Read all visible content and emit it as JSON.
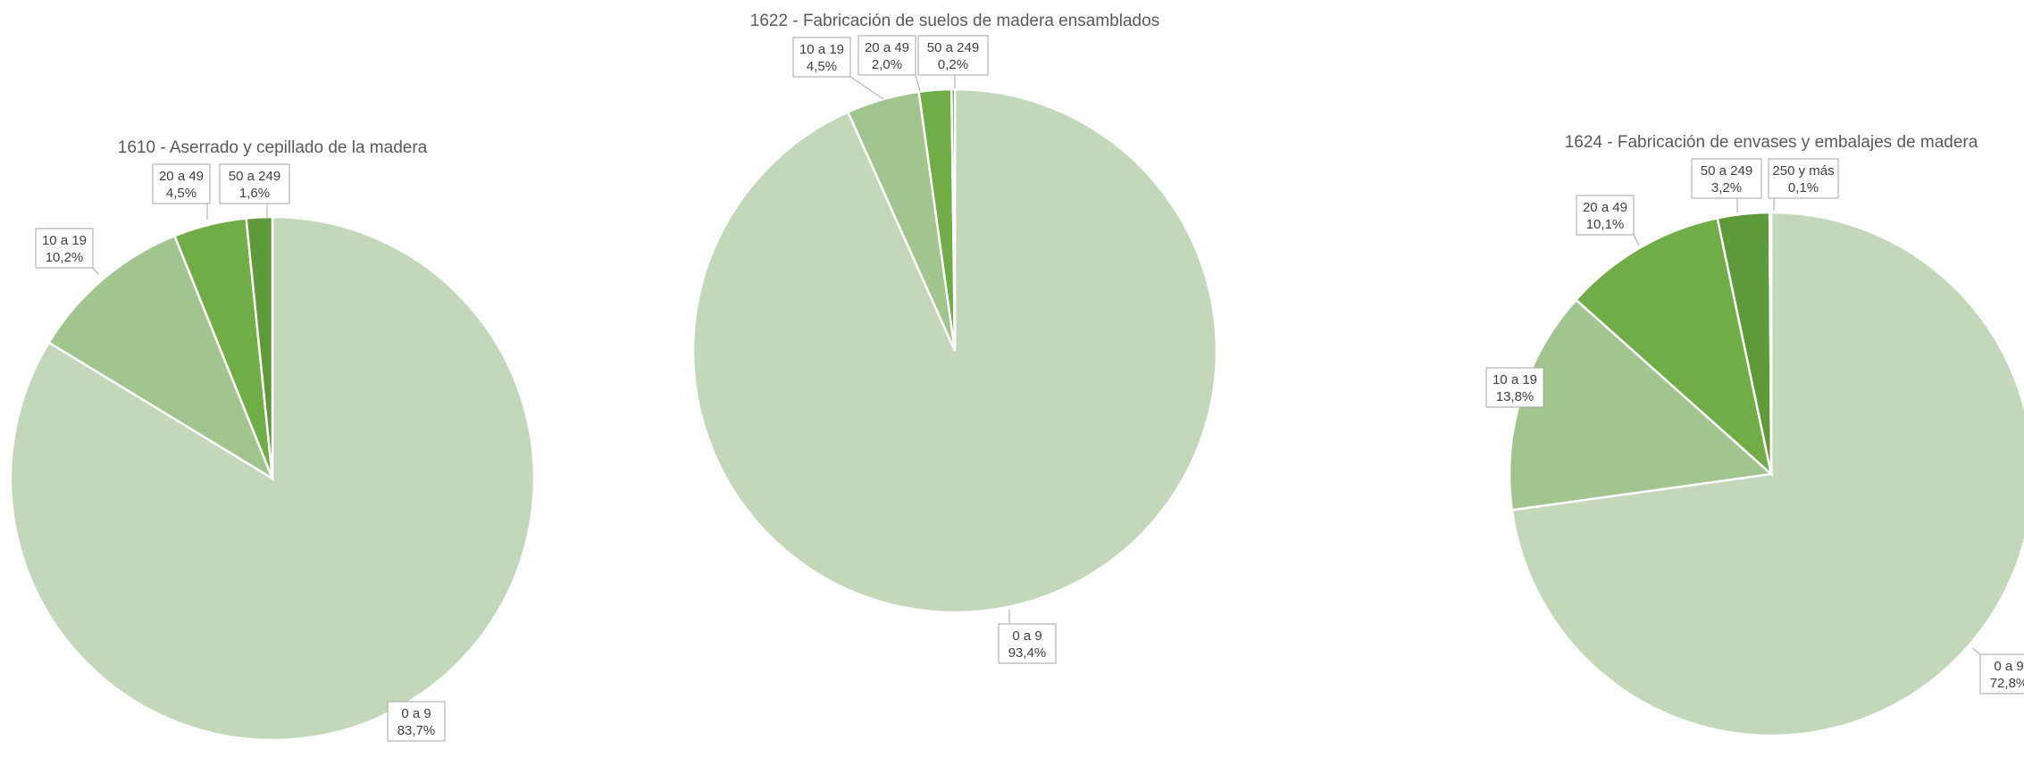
{
  "chart_data": [
    {
      "type": "pie",
      "title": "1610 - Aserrado y cepillado de la madera",
      "slices": [
        {
          "category": "0 a 9",
          "value": 83.7,
          "label": "83,7%",
          "color": "#c3d8ba"
        },
        {
          "category": "10 a 19",
          "value": 10.2,
          "label": "10,2%",
          "color": "#a2c48f"
        },
        {
          "category": "20 a 49",
          "value": 4.5,
          "label": "4,5%",
          "color": "#70ad47"
        },
        {
          "category": "50 a 249",
          "value": 1.6,
          "label": "1,6%",
          "color": "#5f9a3a"
        }
      ]
    },
    {
      "type": "pie",
      "title": "1622 - Fabricación de suelos de madera ensamblados",
      "slices": [
        {
          "category": "0 a 9",
          "value": 93.4,
          "label": "93,4%",
          "color": "#c3d8ba"
        },
        {
          "category": "10 a 19",
          "value": 4.5,
          "label": "4,5%",
          "color": "#a2c48f"
        },
        {
          "category": "20 a 49",
          "value": 2.0,
          "label": "2,0%",
          "color": "#70ad47"
        },
        {
          "category": "50 a 249",
          "value": 0.2,
          "label": "0,2%",
          "color": "#5f9a3a"
        }
      ]
    },
    {
      "type": "pie",
      "title": "1624 - Fabricación de envases y embalajes de madera",
      "slices": [
        {
          "category": "0 a 9",
          "value": 72.8,
          "label": "72,8%",
          "color": "#c3d8ba"
        },
        {
          "category": "10 a 19",
          "value": 13.8,
          "label": "13,8%",
          "color": "#a2c48f"
        },
        {
          "category": "20 a 49",
          "value": 10.1,
          "label": "10,1%",
          "color": "#70ad47"
        },
        {
          "category": "50 a 249",
          "value": 3.2,
          "label": "3,2%",
          "color": "#5f9a3a"
        },
        {
          "category": "250 y más",
          "value": 0.1,
          "label": "0,1%",
          "color": "#c3d8ba"
        }
      ]
    }
  ]
}
